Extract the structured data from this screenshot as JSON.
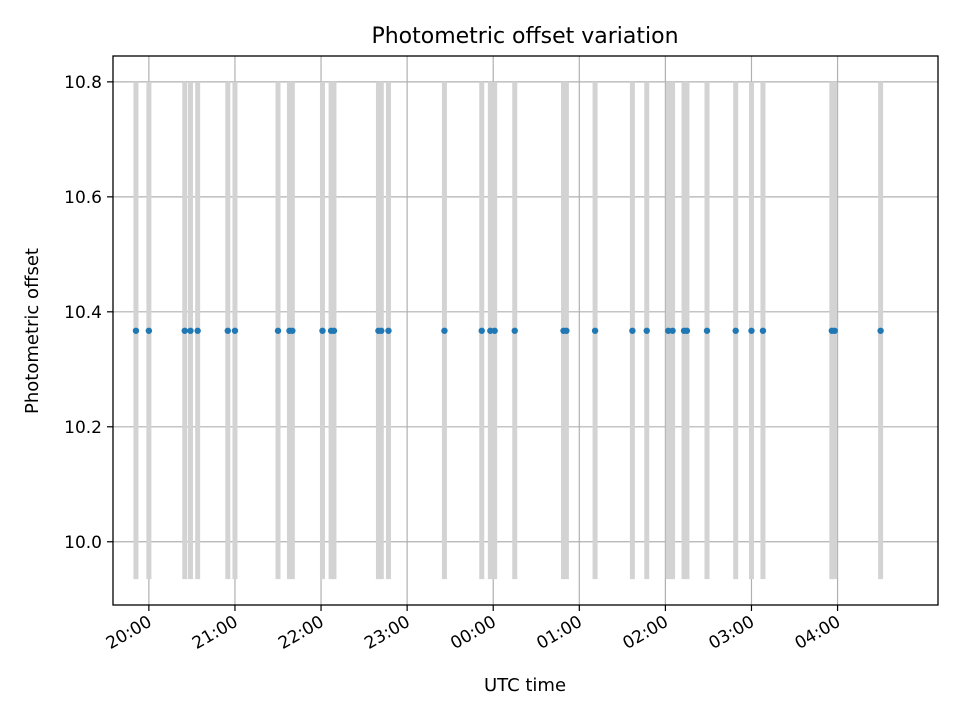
{
  "chart_data": {
    "type": "scatter",
    "title": "Photometric offset variation",
    "xlabel": "UTC time",
    "ylabel": "Photometric offset",
    "ylim": [
      9.89,
      10.845
    ],
    "xlim": [
      "19:35",
      "05:10"
    ],
    "grid": true,
    "x_ticks": [
      "20:00",
      "21:00",
      "22:00",
      "23:00",
      "00:00",
      "01:00",
      "02:00",
      "03:00",
      "04:00"
    ],
    "y_ticks": [
      10.0,
      10.2,
      10.4,
      10.6,
      10.8
    ],
    "error_bar": {
      "low": 9.935,
      "high": 10.8
    },
    "marker_color": "#1f77b4",
    "errorbar_color": "#d3d3d3",
    "points": [
      {
        "x": "19:51",
        "y": 10.367
      },
      {
        "x": "20:00",
        "y": 10.367
      },
      {
        "x": "20:25",
        "y": 10.367
      },
      {
        "x": "20:29",
        "y": 10.367
      },
      {
        "x": "20:34",
        "y": 10.367
      },
      {
        "x": "20:55",
        "y": 10.367
      },
      {
        "x": "21:00",
        "y": 10.367
      },
      {
        "x": "21:30",
        "y": 10.367
      },
      {
        "x": "21:38",
        "y": 10.367
      },
      {
        "x": "21:40",
        "y": 10.367
      },
      {
        "x": "22:01",
        "y": 10.367
      },
      {
        "x": "22:07",
        "y": 10.367
      },
      {
        "x": "22:09",
        "y": 10.367
      },
      {
        "x": "22:40",
        "y": 10.367
      },
      {
        "x": "22:42",
        "y": 10.367
      },
      {
        "x": "22:47",
        "y": 10.367
      },
      {
        "x": "23:26",
        "y": 10.367
      },
      {
        "x": "23:52",
        "y": 10.367
      },
      {
        "x": "23:58",
        "y": 10.367
      },
      {
        "x": "00:01",
        "y": 10.367
      },
      {
        "x": "00:15",
        "y": 10.367
      },
      {
        "x": "00:49",
        "y": 10.367
      },
      {
        "x": "00:51",
        "y": 10.367
      },
      {
        "x": "01:11",
        "y": 10.367
      },
      {
        "x": "01:37",
        "y": 10.367
      },
      {
        "x": "01:47",
        "y": 10.367
      },
      {
        "x": "02:02",
        "y": 10.367
      },
      {
        "x": "02:05",
        "y": 10.367
      },
      {
        "x": "02:13",
        "y": 10.367
      },
      {
        "x": "02:15",
        "y": 10.367
      },
      {
        "x": "02:29",
        "y": 10.367
      },
      {
        "x": "02:49",
        "y": 10.367
      },
      {
        "x": "03:00",
        "y": 10.367
      },
      {
        "x": "03:08",
        "y": 10.367
      },
      {
        "x": "03:56",
        "y": 10.367
      },
      {
        "x": "03:58",
        "y": 10.367
      },
      {
        "x": "04:30",
        "y": 10.367
      }
    ]
  }
}
